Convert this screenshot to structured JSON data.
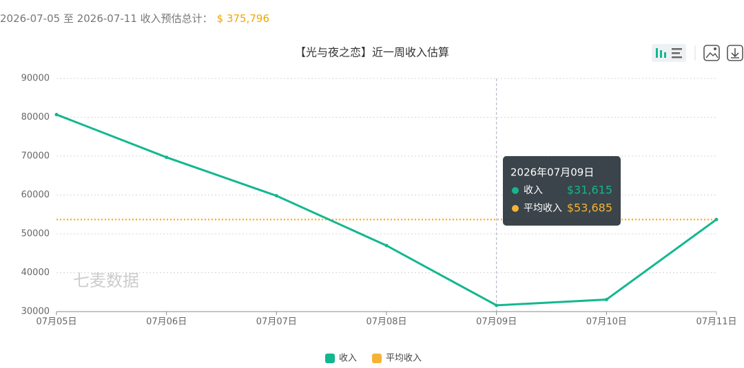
{
  "header": {
    "range_text": "2026-07-05 至 2026-07-11 收入预估总计：",
    "total": "$ 375,796"
  },
  "chart_data": {
    "type": "line",
    "title": "【光与夜之恋】近一周收入估算",
    "watermark": "七麦数据",
    "categories": [
      "07月05日",
      "07月06日",
      "07月07日",
      "07月08日",
      "07月09日",
      "07月10日",
      "07月11日"
    ],
    "series": [
      {
        "name": "收入",
        "color": "#13b78f",
        "values": [
          80700,
          69700,
          59800,
          47000,
          31615,
          33100,
          53700
        ]
      }
    ],
    "average": {
      "name": "平均收入",
      "color": "#f5b335",
      "value": 53685
    },
    "ylim": [
      30000,
      90000
    ],
    "yticks": [
      30000,
      40000,
      50000,
      60000,
      70000,
      80000,
      90000
    ],
    "grid": true,
    "tooltip": {
      "title": "2026年07月09日",
      "values": [
        31615,
        53685
      ],
      "value_labels": [
        "$31,615",
        "$53,685"
      ]
    }
  }
}
